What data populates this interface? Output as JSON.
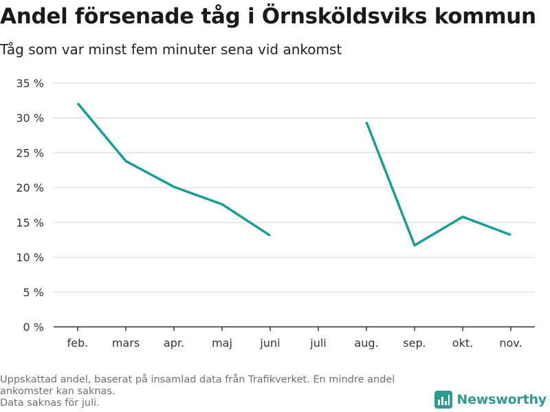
{
  "header": {
    "title": "Andel försenade tåg i Örnsköldsviks kommun",
    "subtitle": "Tåg som var minst fem minuter sena vid ankomst"
  },
  "footnote": {
    "lines": [
      "Uppskattad andel, baserat på insamlad data från Trafikverket. En mindre andel",
      "ankomster kan saknas.",
      "Data saknas för juli."
    ]
  },
  "brand": {
    "name": "Newsworthy",
    "icon": "newsworthy-logo-icon",
    "color": "#2e9a92"
  },
  "chart_data": {
    "type": "line",
    "categories": [
      "feb.",
      "mars",
      "apr.",
      "maj",
      "juni",
      "juli",
      "aug.",
      "sep.",
      "okt.",
      "nov."
    ],
    "series": [
      {
        "values": [
          32.1,
          23.8,
          20.1,
          17.6,
          13.1,
          null,
          29.4,
          11.7,
          15.8,
          13.2
        ],
        "color": "#159e95"
      }
    ],
    "yticks": [
      0,
      5,
      10,
      15,
      20,
      25,
      30,
      35
    ],
    "ytick_labels": [
      "0 %",
      "5 %",
      "10 %",
      "15 %",
      "20 %",
      "25 %",
      "30 %",
      "35 %"
    ],
    "ylim": [
      0,
      35
    ],
    "grid": true,
    "legend": "none"
  }
}
